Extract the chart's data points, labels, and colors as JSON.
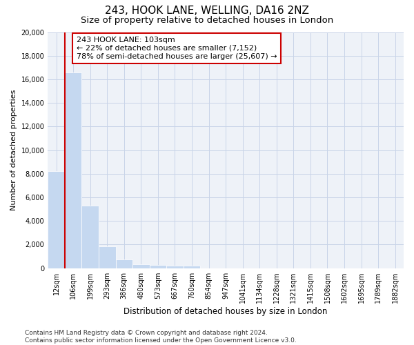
{
  "title": "243, HOOK LANE, WELLING, DA16 2NZ",
  "subtitle": "Size of property relative to detached houses in London",
  "xlabel": "Distribution of detached houses by size in London",
  "ylabel": "Number of detached properties",
  "categories": [
    "12sqm",
    "106sqm",
    "199sqm",
    "293sqm",
    "386sqm",
    "480sqm",
    "573sqm",
    "667sqm",
    "760sqm",
    "854sqm",
    "947sqm",
    "1041sqm",
    "1134sqm",
    "1228sqm",
    "1321sqm",
    "1415sqm",
    "1508sqm",
    "1602sqm",
    "1695sqm",
    "1789sqm",
    "1882sqm"
  ],
  "values": [
    8200,
    16600,
    5300,
    1850,
    750,
    350,
    270,
    220,
    200,
    0,
    0,
    0,
    0,
    0,
    0,
    0,
    0,
    0,
    0,
    0,
    0
  ],
  "bar_color": "#c5d8f0",
  "bar_edge_color": "#c5d8f0",
  "grid_color": "#c8d4e8",
  "bg_color": "#eef2f8",
  "vline_color": "#cc0000",
  "vline_x_bar": 1,
  "annotation_text": "243 HOOK LANE: 103sqm\n← 22% of detached houses are smaller (7,152)\n78% of semi-detached houses are larger (25,607) →",
  "annotation_box_color": "#cc0000",
  "ylim": [
    0,
    20000
  ],
  "yticks": [
    0,
    2000,
    4000,
    6000,
    8000,
    10000,
    12000,
    14000,
    16000,
    18000,
    20000
  ],
  "footer": "Contains HM Land Registry data © Crown copyright and database right 2024.\nContains public sector information licensed under the Open Government Licence v3.0.",
  "title_fontsize": 11,
  "subtitle_fontsize": 9.5,
  "xlabel_fontsize": 8.5,
  "ylabel_fontsize": 8,
  "tick_fontsize": 7,
  "annotation_fontsize": 8,
  "footer_fontsize": 6.5
}
